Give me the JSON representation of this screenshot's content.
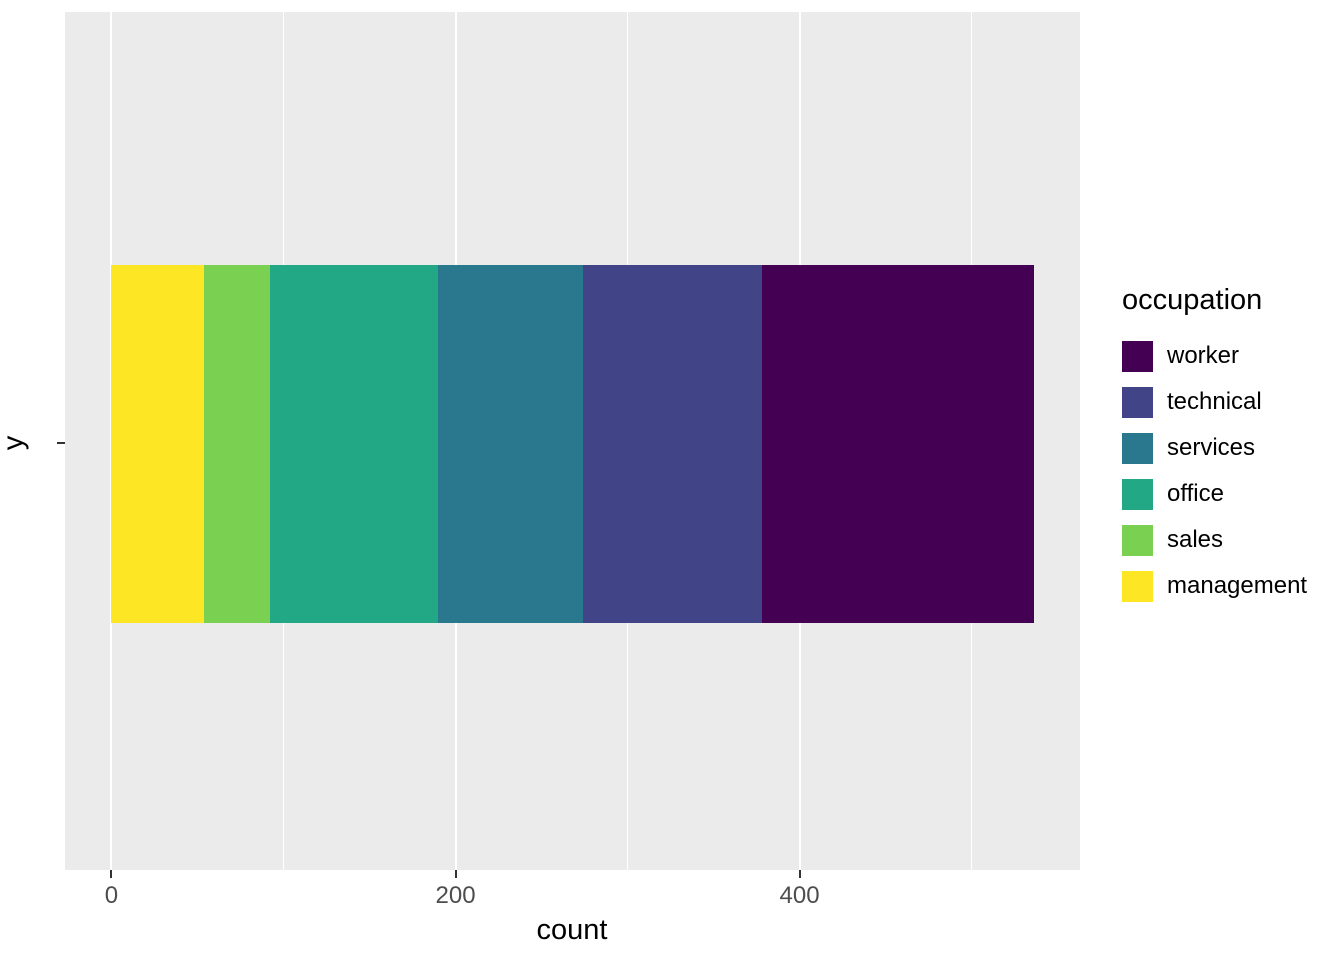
{
  "chart_data": {
    "type": "bar",
    "orientation": "horizontal",
    "stacked": true,
    "title": "",
    "xlabel": "count",
    "ylabel": "y",
    "grid": true,
    "panel_background": "#EBEBEB",
    "grid_color": "#FFFFFF",
    "x_major_ticks": [
      0,
      200,
      400
    ],
    "x_minor_ticks": [
      100,
      300,
      500
    ],
    "xlim": [
      -27,
      563
    ],
    "categories": [
      "y"
    ],
    "series": [
      {
        "name": "management",
        "value": 54,
        "color": "#FDE725"
      },
      {
        "name": "sales",
        "value": 38,
        "color": "#7AD151"
      },
      {
        "name": "office",
        "value": 98,
        "color": "#22A884"
      },
      {
        "name": "services",
        "value": 84,
        "color": "#2A788E"
      },
      {
        "name": "technical",
        "value": 104,
        "color": "#414487"
      },
      {
        "name": "worker",
        "value": 158,
        "color": "#440154"
      }
    ],
    "legend": {
      "title": "occupation",
      "position": "right",
      "entries": [
        {
          "label": "worker",
          "color": "#440154"
        },
        {
          "label": "technical",
          "color": "#414487"
        },
        {
          "label": "services",
          "color": "#2A788E"
        },
        {
          "label": "office",
          "color": "#22A884"
        },
        {
          "label": "sales",
          "color": "#7AD151"
        },
        {
          "label": "management",
          "color": "#FDE725"
        }
      ]
    }
  }
}
